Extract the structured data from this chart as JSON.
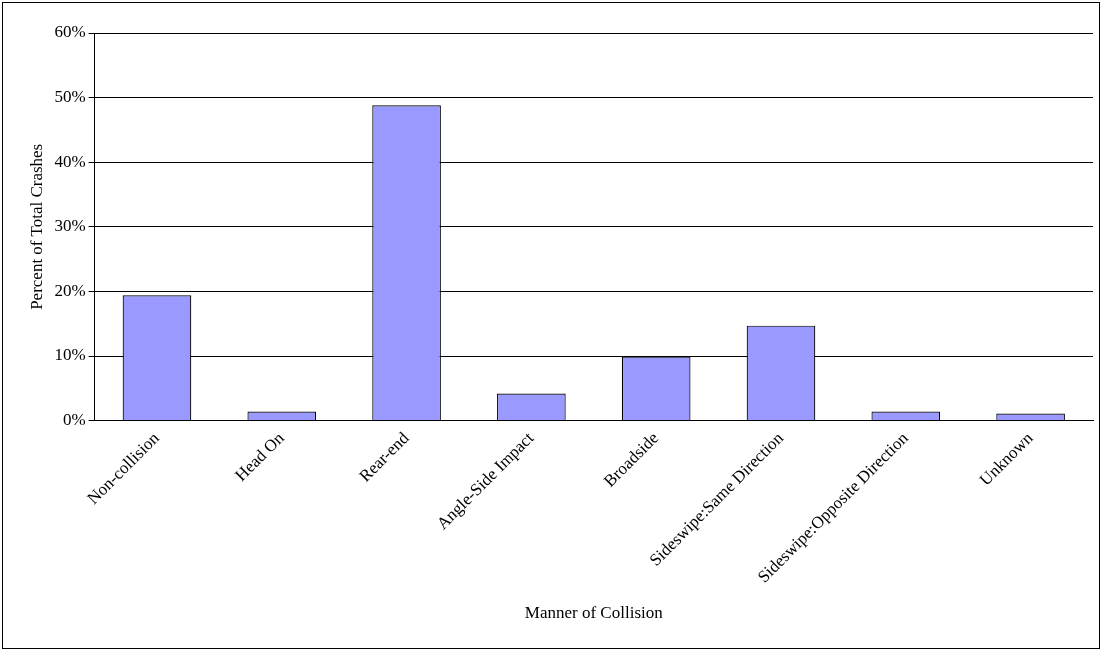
{
  "chart_data": {
    "type": "bar",
    "xlabel": "Manner of Collision",
    "ylabel": "Percent of Total Crashes",
    "categories": [
      "Non-collision",
      "Head On",
      "Rear-end",
      "Angle-Side Impact",
      "Broadside",
      "Sideswipe:Same Direction",
      "Sideswipe:Opposite Direction",
      "Unknown"
    ],
    "values": [
      19.4,
      1.4,
      48.8,
      4.2,
      9.9,
      14.7,
      1.4,
      1.1
    ],
    "color": "#9999ff",
    "ylim": [
      0,
      60
    ],
    "yticks": [
      {
        "value": 0,
        "label": "0%"
      },
      {
        "value": 10,
        "label": "10%"
      },
      {
        "value": 20,
        "label": "20%"
      },
      {
        "value": 30,
        "label": "30%"
      },
      {
        "value": 40,
        "label": "40%"
      },
      {
        "value": 50,
        "label": "50%"
      },
      {
        "value": 60,
        "label": "60%"
      }
    ],
    "grid": "y",
    "legend": false
  }
}
